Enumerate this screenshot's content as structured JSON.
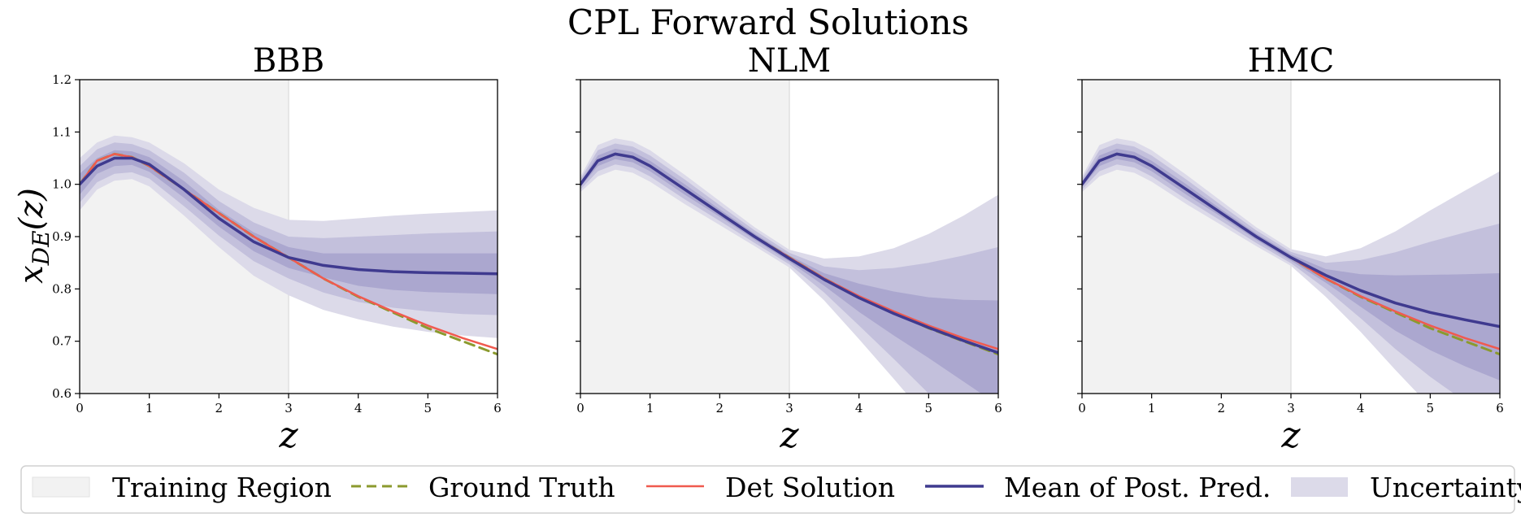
{
  "figure": {
    "title": "CPL Forward Solutions",
    "shared_ylabel": "x_DE(z)",
    "colors": {
      "training_region": "#f2f2f2",
      "training_boundary": "#e0e0e0",
      "ground_truth": "#8b9a2e",
      "det_solution": "#f05a4f",
      "mean_post_pred": "#3f3a8f",
      "uncertainty_outer": "#dcdae9",
      "uncertainty_mid": "#c3c0dc",
      "uncertainty_inner": "#aba7cf"
    }
  },
  "legend": {
    "items": [
      {
        "label": "Training Region",
        "kind": "patch",
        "color": "#f2f2f2"
      },
      {
        "label": "Ground Truth",
        "kind": "dashed",
        "color": "#8b9a2e"
      },
      {
        "label": "Det Solution",
        "kind": "line",
        "color": "#f05a4f"
      },
      {
        "label": "Mean of Post. Pred.",
        "kind": "line",
        "color": "#3f3a8f"
      },
      {
        "label": "Uncertainty",
        "kind": "patch",
        "color": "#dcdae9"
      }
    ]
  },
  "chart_data": [
    {
      "type": "line",
      "title": "BBB",
      "xlabel": "z",
      "ylabel": "x_DE(z)",
      "xlim": [
        0,
        6
      ],
      "ylim": [
        0.6,
        1.2
      ],
      "xticks": [
        "0",
        "1",
        "2",
        "3",
        "4",
        "5",
        "6"
      ],
      "yticks": [
        "0.6",
        "0.7",
        "0.8",
        "0.9",
        "1.0",
        "1.1",
        "1.2"
      ],
      "training_region": [
        0,
        3
      ],
      "x": [
        0,
        0.25,
        0.5,
        0.75,
        1,
        1.5,
        2,
        2.5,
        3,
        3.5,
        4,
        4.5,
        5,
        5.5,
        6
      ],
      "series": [
        {
          "name": "Ground Truth",
          "values": [
            1.0,
            1.045,
            1.058,
            1.052,
            1.035,
            0.99,
            0.945,
            0.9,
            0.86,
            0.82,
            0.785,
            0.755,
            0.725,
            0.7,
            0.675
          ]
        },
        {
          "name": "Det Solution",
          "values": [
            1.0,
            1.045,
            1.058,
            1.052,
            1.035,
            0.99,
            0.945,
            0.9,
            0.86,
            0.82,
            0.786,
            0.757,
            0.73,
            0.706,
            0.685
          ]
        },
        {
          "name": "Mean of Post. Pred.",
          "values": [
            1.0,
            1.035,
            1.05,
            1.05,
            1.038,
            0.99,
            0.935,
            0.89,
            0.86,
            0.845,
            0.837,
            0.833,
            0.831,
            0.83,
            0.829
          ]
        }
      ],
      "bands": [
        {
          "upper": [
            1.05,
            1.08,
            1.093,
            1.09,
            1.08,
            1.04,
            0.99,
            0.955,
            0.932,
            0.93,
            0.935,
            0.94,
            0.944,
            0.947,
            0.95
          ]
        },
        {
          "upper": [
            1.035,
            1.067,
            1.08,
            1.077,
            1.065,
            1.022,
            0.968,
            0.927,
            0.9,
            0.897,
            0.9,
            0.903,
            0.906,
            0.908,
            0.91
          ]
        },
        {
          "upper": [
            1.02,
            1.05,
            1.065,
            1.063,
            1.052,
            1.006,
            0.951,
            0.908,
            0.88,
            0.868,
            0.868,
            0.868,
            0.868,
            0.868,
            0.868
          ]
        },
        {
          "lower": [
            0.98,
            1.02,
            1.035,
            1.037,
            1.024,
            0.974,
            0.919,
            0.872,
            0.84,
            0.822,
            0.806,
            0.798,
            0.794,
            0.792,
            0.79
          ]
        },
        {
          "lower": [
            0.965,
            1.004,
            1.02,
            1.023,
            1.011,
            0.958,
            0.902,
            0.853,
            0.82,
            0.793,
            0.775,
            0.764,
            0.757,
            0.752,
            0.75
          ]
        },
        {
          "lower": [
            0.95,
            0.99,
            1.007,
            1.01,
            0.996,
            0.94,
            0.88,
            0.825,
            0.788,
            0.76,
            0.742,
            0.728,
            0.718,
            0.711,
            0.706
          ]
        }
      ]
    },
    {
      "type": "line",
      "title": "NLM",
      "xlabel": "z",
      "ylabel": "",
      "xlim": [
        0,
        6
      ],
      "ylim": [
        0.6,
        1.2
      ],
      "xticks": [
        "0",
        "1",
        "2",
        "3",
        "4",
        "5",
        "6"
      ],
      "yticks": [
        "0.6",
        "0.7",
        "0.8",
        "0.9",
        "1.0",
        "1.1",
        "1.2"
      ],
      "training_region": [
        0,
        3
      ],
      "x": [
        0,
        0.25,
        0.5,
        0.75,
        1,
        1.5,
        2,
        2.5,
        3,
        3.5,
        4,
        4.5,
        5,
        5.5,
        6
      ],
      "series": [
        {
          "name": "Ground Truth",
          "values": [
            1.0,
            1.045,
            1.058,
            1.052,
            1.035,
            0.99,
            0.945,
            0.9,
            0.86,
            0.82,
            0.785,
            0.755,
            0.725,
            0.7,
            0.675
          ]
        },
        {
          "name": "Det Solution",
          "values": [
            1.0,
            1.045,
            1.058,
            1.052,
            1.035,
            0.99,
            0.945,
            0.9,
            0.86,
            0.82,
            0.786,
            0.757,
            0.73,
            0.706,
            0.685
          ]
        },
        {
          "name": "Mean of Post. Pred.",
          "values": [
            1.0,
            1.045,
            1.058,
            1.052,
            1.035,
            0.99,
            0.945,
            0.9,
            0.858,
            0.818,
            0.783,
            0.753,
            0.726,
            0.701,
            0.678
          ]
        }
      ],
      "bands": [
        {
          "upper": [
            1.015,
            1.075,
            1.088,
            1.082,
            1.065,
            1.018,
            0.968,
            0.918,
            0.875,
            0.858,
            0.862,
            0.878,
            0.905,
            0.94,
            0.98
          ]
        },
        {
          "upper": [
            1.01,
            1.065,
            1.078,
            1.072,
            1.055,
            1.009,
            0.96,
            0.912,
            0.869,
            0.843,
            0.836,
            0.84,
            0.85,
            0.864,
            0.88
          ]
        },
        {
          "upper": [
            1.005,
            1.055,
            1.068,
            1.062,
            1.045,
            1.0,
            0.952,
            0.906,
            0.864,
            0.83,
            0.81,
            0.795,
            0.784,
            0.779,
            0.778
          ]
        },
        {
          "lower": [
            0.995,
            1.035,
            1.048,
            1.042,
            1.025,
            0.98,
            0.938,
            0.894,
            0.852,
            0.806,
            0.756,
            0.711,
            0.668,
            0.623,
            0.578
          ]
        },
        {
          "lower": [
            0.99,
            1.025,
            1.038,
            1.032,
            1.015,
            0.971,
            0.93,
            0.888,
            0.847,
            0.793,
            0.73,
            0.666,
            0.6,
            0.54,
            0.48
          ]
        },
        {
          "lower": [
            0.985,
            1.015,
            1.028,
            1.022,
            1.005,
            0.962,
            0.922,
            0.882,
            0.841,
            0.778,
            0.704,
            0.628,
            0.55,
            0.47,
            0.39
          ]
        }
      ]
    },
    {
      "type": "line",
      "title": "HMC",
      "xlabel": "z",
      "ylabel": "",
      "xlim": [
        0,
        6
      ],
      "ylim": [
        0.6,
        1.2
      ],
      "xticks": [
        "0",
        "1",
        "2",
        "3",
        "4",
        "5",
        "6"
      ],
      "yticks": [
        "0.6",
        "0.7",
        "0.8",
        "0.9",
        "1.0",
        "1.1",
        "1.2"
      ],
      "training_region": [
        0,
        3
      ],
      "x": [
        0,
        0.25,
        0.5,
        0.75,
        1,
        1.5,
        2,
        2.5,
        3,
        3.5,
        4,
        4.5,
        5,
        5.5,
        6
      ],
      "series": [
        {
          "name": "Ground Truth",
          "values": [
            1.0,
            1.045,
            1.058,
            1.052,
            1.035,
            0.99,
            0.945,
            0.9,
            0.86,
            0.82,
            0.785,
            0.755,
            0.725,
            0.7,
            0.675
          ]
        },
        {
          "name": "Det Solution",
          "values": [
            1.0,
            1.045,
            1.058,
            1.052,
            1.035,
            0.99,
            0.945,
            0.9,
            0.86,
            0.82,
            0.786,
            0.757,
            0.73,
            0.706,
            0.685
          ]
        },
        {
          "name": "Mean of Post. Pred.",
          "values": [
            1.0,
            1.045,
            1.058,
            1.052,
            1.035,
            0.99,
            0.945,
            0.9,
            0.86,
            0.826,
            0.797,
            0.773,
            0.755,
            0.741,
            0.728
          ]
        }
      ],
      "bands": [
        {
          "upper": [
            1.015,
            1.075,
            1.088,
            1.082,
            1.065,
            1.018,
            0.968,
            0.918,
            0.876,
            0.862,
            0.878,
            0.91,
            0.95,
            0.988,
            1.025
          ]
        },
        {
          "upper": [
            1.01,
            1.065,
            1.078,
            1.072,
            1.055,
            1.009,
            0.96,
            0.912,
            0.871,
            0.85,
            0.855,
            0.87,
            0.89,
            0.908,
            0.925
          ]
        },
        {
          "upper": [
            1.005,
            1.055,
            1.068,
            1.062,
            1.045,
            1.0,
            0.952,
            0.906,
            0.866,
            0.838,
            0.828,
            0.826,
            0.827,
            0.828,
            0.83
          ]
        },
        {
          "lower": [
            0.995,
            1.035,
            1.048,
            1.042,
            1.025,
            0.98,
            0.938,
            0.894,
            0.854,
            0.812,
            0.766,
            0.72,
            0.683,
            0.652,
            0.625
          ]
        },
        {
          "lower": [
            0.99,
            1.025,
            1.038,
            1.032,
            1.015,
            0.971,
            0.93,
            0.888,
            0.849,
            0.8,
            0.744,
            0.685,
            0.632,
            0.585,
            0.54
          ]
        },
        {
          "lower": [
            0.985,
            1.015,
            1.028,
            1.022,
            1.005,
            0.962,
            0.922,
            0.882,
            0.844,
            0.785,
            0.718,
            0.645,
            0.575,
            0.51,
            0.45
          ]
        }
      ]
    }
  ]
}
